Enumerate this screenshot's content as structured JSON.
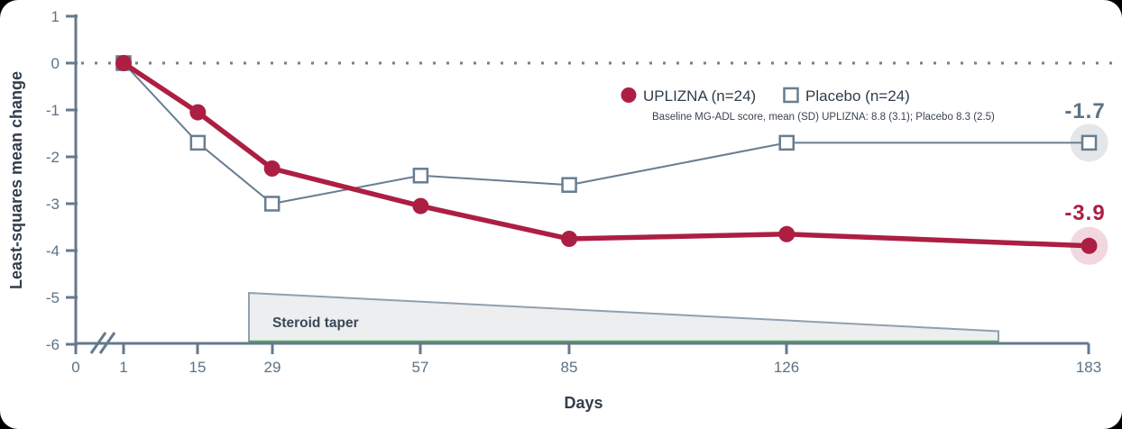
{
  "chart_data": {
    "type": "line",
    "title": "",
    "xlabel": "Days",
    "ylabel": "Least-squares mean change",
    "ylim": [
      -6,
      1
    ],
    "grid": false,
    "zero_reference_line": true,
    "x_axis_break_between": [
      0,
      1
    ],
    "x_tick_labels": [
      "0",
      "1",
      "15",
      "29",
      "57",
      "85",
      "126",
      "183"
    ],
    "y_tick_labels": [
      "1",
      "0",
      "-1",
      "-2",
      "-3",
      "-4",
      "-5",
      "-6"
    ],
    "x_days": [
      1,
      15,
      29,
      57,
      85,
      126,
      183
    ],
    "series": [
      {
        "name": "Placebo (n=24)",
        "marker": "square",
        "color": "#687D90",
        "halo_color": "#E4E6E9",
        "line_width": 2,
        "values": [
          0,
          -1.7,
          -3.0,
          -2.4,
          -2.6,
          -1.7,
          -1.7
        ],
        "end_label": "-1.7"
      },
      {
        "name": "UPLIZNA (n=24)",
        "marker": "circle",
        "color": "#AC1F42",
        "halo_color": "#F2D8DE",
        "line_width": 5.5,
        "values": [
          0,
          -1.05,
          -2.25,
          -3.05,
          -3.75,
          -3.65,
          -3.9
        ],
        "end_label": "-3.9"
      }
    ],
    "legend": {
      "uplizna_label": "UPLIZNA (n=24)",
      "placebo_label": "Placebo (n=24)",
      "note": "Baseline MG-ADL score, mean (SD) UPLIZNA: 8.8 (3.1); Placebo 8.3 (2.5)"
    },
    "steroid_taper": {
      "label": "Steroid taper",
      "start_day": 24,
      "end_day": 166,
      "fill": "#ECEEF0",
      "border": "#90A0AF",
      "underline_color": "#54A753"
    }
  }
}
